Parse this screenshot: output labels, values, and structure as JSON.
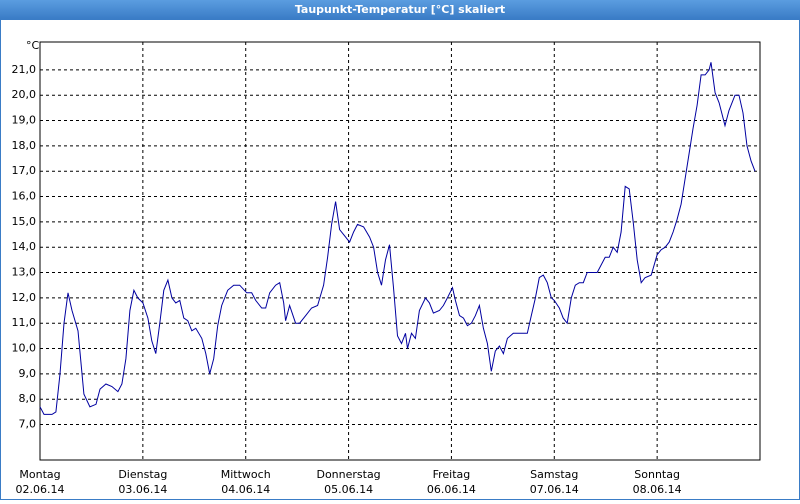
{
  "chart_data": {
    "type": "line",
    "title": "Taupunkt-Temperatur [°C] skaliert",
    "y_unit": "°C",
    "xlim": [
      0,
      7
    ],
    "ylim": [
      5.6,
      22.1
    ],
    "xticks": [
      {
        "value": 0,
        "label": "Montag"
      },
      {
        "value": 1,
        "label": "Dienstag"
      },
      {
        "value": 2,
        "label": "Mittwoch"
      },
      {
        "value": 3,
        "label": "Donnerstag"
      },
      {
        "value": 4,
        "label": "Freitag"
      },
      {
        "value": 5,
        "label": "Samstag"
      },
      {
        "value": 6,
        "label": "Sonntag"
      }
    ],
    "xtick_dates": [
      "02.06.14",
      "03.06.14",
      "04.06.14",
      "05.06.14",
      "06.06.14",
      "07.06.14",
      "08.06.14"
    ],
    "yticks": [
      {
        "value": 7,
        "label": "7,0"
      },
      {
        "value": 8,
        "label": "8,0"
      },
      {
        "value": 9,
        "label": "9,0"
      },
      {
        "value": 10,
        "label": "10,0"
      },
      {
        "value": 11,
        "label": "11,0"
      },
      {
        "value": 12,
        "label": "12,0"
      },
      {
        "value": 13,
        "label": "13,0"
      },
      {
        "value": 14,
        "label": "14,0"
      },
      {
        "value": 15,
        "label": "15,0"
      },
      {
        "value": 16,
        "label": "16,0"
      },
      {
        "value": 17,
        "label": "17,0"
      },
      {
        "value": 18,
        "label": "18,0"
      },
      {
        "value": 19,
        "label": "19,0"
      },
      {
        "value": 20,
        "label": "20,0"
      },
      {
        "value": 21,
        "label": "21,0"
      }
    ],
    "grid": true,
    "x": [
      0,
      0.039,
      0.117,
      0.155,
      0.194,
      0.233,
      0.272,
      0.311,
      0.369,
      0.427,
      0.485,
      0.544,
      0.583,
      0.641,
      0.699,
      0.757,
      0.796,
      0.835,
      0.874,
      0.913,
      0.951,
      1.0,
      1.049,
      1.087,
      1.126,
      1.165,
      1.204,
      1.243,
      1.282,
      1.32,
      1.359,
      1.398,
      1.437,
      1.476,
      1.515,
      1.573,
      1.612,
      1.65,
      1.689,
      1.728,
      1.767,
      1.825,
      1.883,
      1.942,
      2.01,
      2.058,
      2.097,
      2.155,
      2.194,
      2.233,
      2.291,
      2.33,
      2.369,
      2.388,
      2.427,
      2.485,
      2.524,
      2.583,
      2.641,
      2.699,
      2.757,
      2.796,
      2.835,
      2.874,
      2.913,
      2.971,
      3.01,
      3.049,
      3.087,
      3.146,
      3.204,
      3.243,
      3.282,
      3.32,
      3.359,
      3.398,
      3.437,
      3.476,
      3.515,
      3.553,
      3.573,
      3.612,
      3.65,
      3.689,
      3.748,
      3.786,
      3.825,
      3.883,
      3.922,
      3.961,
      4.01,
      4.039,
      4.078,
      4.117,
      4.155,
      4.194,
      4.233,
      4.272,
      4.311,
      4.35,
      4.388,
      4.427,
      4.466,
      4.505,
      4.544,
      4.602,
      4.66,
      4.738,
      4.777,
      4.816,
      4.854,
      4.893,
      4.932,
      4.971,
      5.0,
      5.049,
      5.087,
      5.126,
      5.165,
      5.204,
      5.243,
      5.282,
      5.32,
      5.379,
      5.417,
      5.456,
      5.495,
      5.534,
      5.573,
      5.612,
      5.65,
      5.689,
      5.728,
      5.767,
      5.806,
      5.845,
      5.883,
      5.942,
      6.0,
      6.039,
      6.078,
      6.117,
      6.155,
      6.194,
      6.233,
      6.272,
      6.311,
      6.35,
      6.388,
      6.427,
      6.466,
      6.505,
      6.524,
      6.563,
      6.602,
      6.66,
      6.699,
      6.757,
      6.796,
      6.835,
      6.874,
      6.913,
      6.951
    ],
    "series": [
      {
        "color": "#0000a0",
        "values": [
          7.7,
          7.4,
          7.4,
          7.5,
          9.0,
          11.0,
          12.2,
          11.5,
          10.7,
          8.2,
          7.7,
          7.8,
          8.4,
          8.6,
          8.5,
          8.3,
          8.6,
          9.6,
          11.5,
          12.3,
          12.0,
          11.8,
          11.2,
          10.3,
          9.8,
          11.0,
          12.3,
          12.7,
          12.0,
          11.8,
          11.9,
          11.2,
          11.1,
          10.7,
          10.8,
          10.4,
          9.8,
          9.0,
          9.6,
          10.9,
          11.7,
          12.3,
          12.5,
          12.5,
          12.2,
          12.2,
          11.9,
          11.6,
          11.6,
          12.2,
          12.5,
          12.6,
          11.8,
          11.1,
          11.7,
          11.0,
          11.0,
          11.3,
          11.6,
          11.7,
          12.5,
          13.6,
          14.9,
          15.8,
          14.7,
          14.4,
          14.2,
          14.6,
          14.9,
          14.8,
          14.4,
          14.0,
          13.0,
          12.5,
          13.5,
          14.1,
          12.4,
          10.5,
          10.2,
          10.6,
          10.0,
          10.6,
          10.4,
          11.5,
          12.0,
          11.8,
          11.4,
          11.5,
          11.7,
          12.0,
          12.4,
          11.9,
          11.3,
          11.2,
          10.9,
          11.0,
          11.3,
          11.7,
          10.8,
          10.2,
          9.1,
          9.9,
          10.1,
          9.8,
          10.4,
          10.6,
          10.6,
          10.6,
          11.3,
          12.0,
          12.8,
          12.9,
          12.6,
          12.0,
          11.9,
          11.6,
          11.2,
          11.0,
          12.0,
          12.5,
          12.6,
          12.6,
          13.0,
          13.0,
          13.0,
          13.3,
          13.6,
          13.6,
          14.0,
          13.8,
          14.6,
          16.4,
          16.3,
          15.0,
          13.5,
          12.6,
          12.8,
          12.9,
          13.7,
          13.9,
          14.0,
          14.2,
          14.6,
          15.1,
          15.7,
          16.7,
          17.7,
          18.7,
          19.6,
          20.8,
          20.8,
          21.0,
          21.3,
          20.1,
          19.7,
          18.8,
          19.4,
          20.0,
          20.0,
          19.3,
          18.0,
          17.4,
          17.0
        ]
      }
    ]
  }
}
